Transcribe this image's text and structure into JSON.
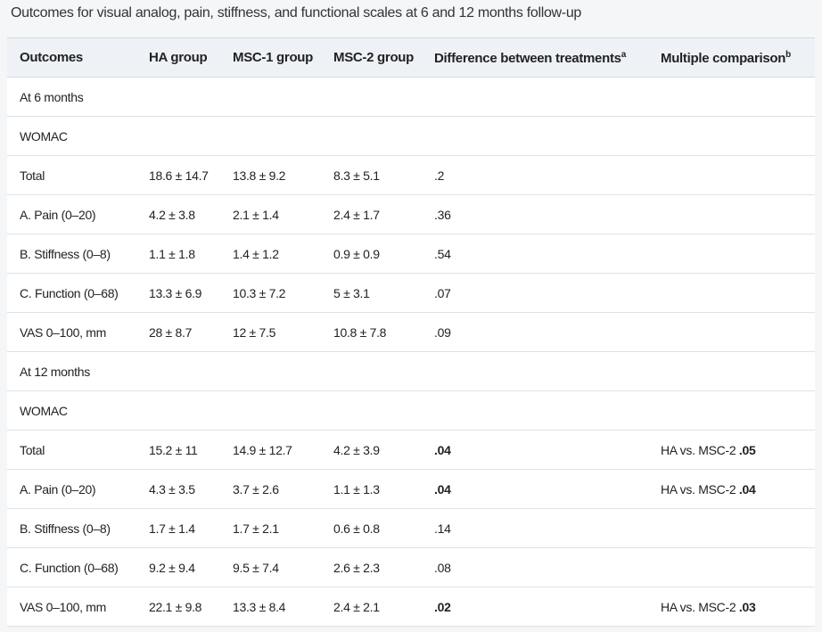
{
  "caption": "Outcomes for visual analog, pain, stiffness, and functional scales at 6 and 12 months follow-up",
  "headers": [
    "Outcomes",
    "HA group",
    "MSC-1 group",
    "MSC-2 group",
    "Difference between treatments",
    "Multiple comparison"
  ],
  "header_superscripts": {
    "4": "a",
    "5": "b"
  },
  "rows": [
    {
      "label": "At 6 months",
      "cells": [
        "",
        "",
        "",
        "",
        ""
      ]
    },
    {
      "label": "WOMAC",
      "cells": [
        "",
        "",
        "",
        "",
        ""
      ]
    },
    {
      "label": "Total",
      "cells": [
        "18.6 ± 14.7",
        "13.8 ± 9.2",
        "8.3 ± 5.1",
        ".2",
        ""
      ]
    },
    {
      "label": "A. Pain (0–20)",
      "cells": [
        "4.2 ± 3.8",
        "2.1 ± 1.4",
        "2.4 ± 1.7",
        ".36",
        ""
      ]
    },
    {
      "label": "B. Stiffness (0–8)",
      "cells": [
        "1.1 ± 1.8",
        "1.4 ± 1.2",
        "0.9 ± 0.9",
        ".54",
        ""
      ]
    },
    {
      "label": "C. Function (0–68)",
      "cells": [
        "13.3 ± 6.9",
        "10.3 ± 7.2",
        "5 ± 3.1",
        ".07",
        ""
      ]
    },
    {
      "label": "VAS 0–100, mm",
      "cells": [
        "28 ± 8.7",
        "12 ± 7.5",
        "10.8 ± 7.8",
        ".09",
        ""
      ]
    },
    {
      "label": "At 12 months",
      "cells": [
        "",
        "",
        "",
        "",
        ""
      ]
    },
    {
      "label": "WOMAC",
      "cells": [
        "",
        "",
        "",
        "",
        ""
      ]
    },
    {
      "label": "Total",
      "cells": [
        "15.2 ± 11",
        "14.9 ± 12.7",
        "4.2 ± 3.9",
        ".04",
        ""
      ],
      "diff_bold": true,
      "comparison": "HA vs. MSC-2",
      "comparison_p": ".05"
    },
    {
      "label": "A. Pain (0–20)",
      "cells": [
        "4.3 ± 3.5",
        "3.7 ± 2.6",
        "1.1 ± 1.3",
        ".04",
        ""
      ],
      "diff_bold": true,
      "comparison": "HA vs. MSC-2",
      "comparison_p": ".04"
    },
    {
      "label": "B. Stiffness (0–8)",
      "cells": [
        "1.7 ± 1.4",
        "1.7 ± 2.1",
        "0.6 ± 0.8",
        ".14",
        ""
      ]
    },
    {
      "label": "C. Function (0–68)",
      "cells": [
        "9.2 ± 9.4",
        "9.5 ± 7.4",
        "2.6 ± 2.3",
        ".08",
        ""
      ]
    },
    {
      "label": "VAS 0–100, mm",
      "cells": [
        "22.1 ± 9.8",
        "13.3 ± 8.4",
        "2.4 ± 2.1",
        ".02",
        ""
      ],
      "diff_bold": true,
      "comparison": "HA vs. MSC-2",
      "comparison_p": ".03"
    }
  ]
}
